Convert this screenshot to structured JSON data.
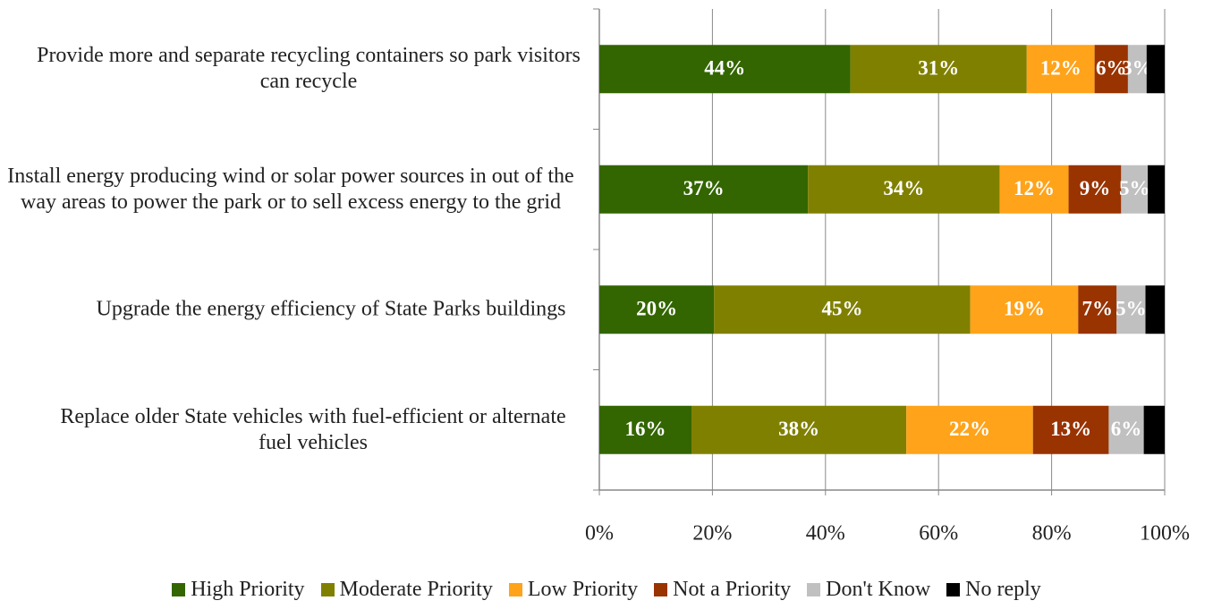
{
  "chart_data": {
    "type": "stacked-bar-horizontal",
    "categories": [
      "Provide more and separate recycling containers so park visitors can recycle",
      "Install energy producing wind or solar power sources in out of the way areas to power the park or to sell excess energy to the grid",
      "Upgrade the energy efficiency of State Parks buildings",
      "Replace older State vehicles with fuel-efficient or alternate fuel vehicles"
    ],
    "series": [
      {
        "name": "High Priority",
        "color": "#336600",
        "values": [
          44.4,
          36.9,
          20.3,
          16.3
        ],
        "value_labels": [
          "44%",
          "37%",
          "20%",
          "16%"
        ]
      },
      {
        "name": "Moderate Priority",
        "color": "#808000",
        "values": [
          31.2,
          33.9,
          45.3,
          38.0
        ],
        "value_labels": [
          "31%",
          "34%",
          "45%",
          "38%"
        ]
      },
      {
        "name": "Low Priority",
        "color": "#ffa31a",
        "values": [
          12.0,
          12.2,
          19.1,
          22.4
        ],
        "value_labels": [
          "12%",
          "12%",
          "19%",
          "22%"
        ]
      },
      {
        "name": "Not a Priority",
        "color": "#993300",
        "values": [
          5.9,
          9.3,
          6.8,
          13.4
        ],
        "value_labels": [
          "6%",
          "9%",
          "7%",
          "13%"
        ]
      },
      {
        "name": "Don't Know",
        "color": "#c0c0c0",
        "values": [
          3.3,
          4.7,
          5.1,
          6.2
        ],
        "value_labels": [
          "3%",
          "5%",
          "5%",
          "6%"
        ]
      },
      {
        "name": "No reply",
        "color": "#000000",
        "values": [
          3.2,
          3.0,
          3.4,
          3.7
        ]
      }
    ],
    "xlim": [
      0,
      100
    ],
    "xticks": [
      {
        "value": 0,
        "label": "0%"
      },
      {
        "value": 20,
        "label": "20%"
      },
      {
        "value": 40,
        "label": "40%"
      },
      {
        "value": 60,
        "label": "60%"
      },
      {
        "value": 80,
        "label": "80%"
      },
      {
        "value": 100,
        "label": "100%"
      }
    ],
    "grid": true,
    "legend": "bottom"
  }
}
